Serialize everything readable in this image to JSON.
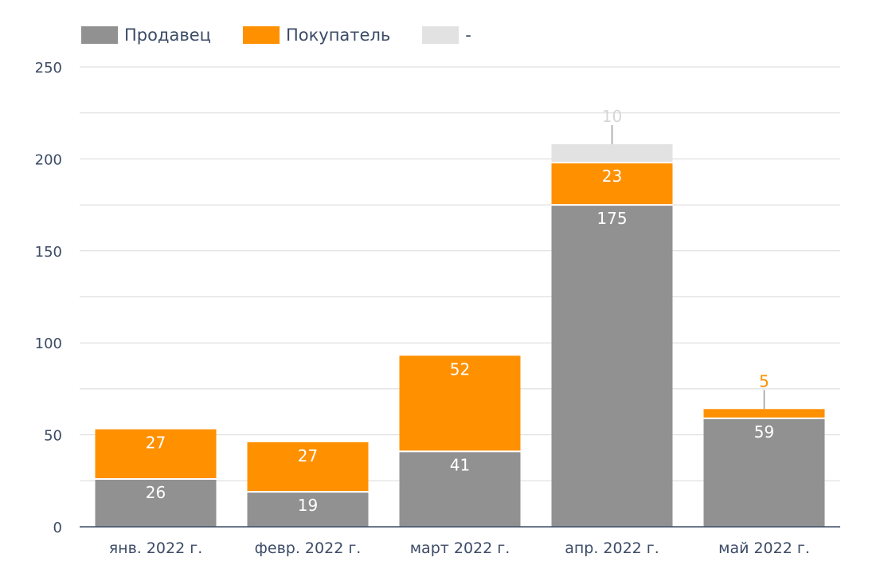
{
  "chart_data": {
    "type": "bar",
    "stacked": true,
    "categories": [
      "янв. 2022 г.",
      "февр. 2022 г.",
      "март 2022 г.",
      "апр. 2022 г.",
      "май 2022 г."
    ],
    "series": [
      {
        "name": "Продавец",
        "color": "#919191",
        "values": [
          26,
          19,
          41,
          175,
          59
        ],
        "label_color": "#ffffff"
      },
      {
        "name": "Покупатель",
        "color": "#ff9000",
        "values": [
          27,
          27,
          52,
          23,
          5
        ],
        "label_color": "#ffffff"
      },
      {
        "name": "-",
        "color": "#e2e2e2",
        "values": [
          0,
          0,
          0,
          10,
          0
        ],
        "label_color": "#d6d6d6"
      }
    ],
    "y_ticks": [
      0,
      50,
      100,
      150,
      200,
      250
    ],
    "ylim": [
      0,
      250
    ],
    "grid": true,
    "legend_position": "top-left"
  }
}
